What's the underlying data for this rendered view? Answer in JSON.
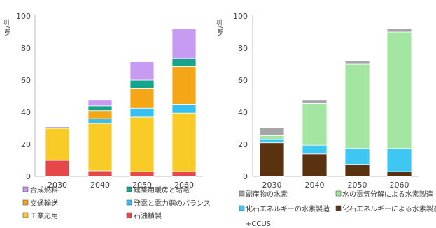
{
  "chart_data": [
    {
      "type": "bar",
      "stacked": true,
      "ylabel": "Mt/年",
      "ylim": [
        0,
        100
      ],
      "yticks": [
        0,
        20,
        40,
        60,
        80,
        100
      ],
      "grid": false,
      "legend_position": "bottom",
      "categories": [
        "2030",
        "2040",
        "2050",
        "2060"
      ],
      "series": [
        {
          "name": "石油精製",
          "color": "#e8474a",
          "values": [
            10,
            3.5,
            3,
            3
          ]
        },
        {
          "name": "工業応用",
          "color": "#f9cb27",
          "values": [
            20,
            29.5,
            34,
            36.5
          ]
        },
        {
          "name": "発電と電力網のバランス",
          "color": "#33c0f5",
          "values": [
            0,
            3,
            5.5,
            5.5
          ]
        },
        {
          "name": "交通輸送",
          "color": "#f4a616",
          "values": [
            0,
            5,
            12.5,
            23.5
          ]
        },
        {
          "name": "建築用暖房と給電",
          "color": "#14a58c",
          "values": [
            0,
            3,
            5,
            5
          ]
        },
        {
          "name": "合成燃料",
          "color": "#c79bf1",
          "values": [
            1,
            3.5,
            11.5,
            18.5
          ]
        }
      ],
      "legend_order": [
        "合成燃料",
        "建築用暖房と給電",
        "交通輸送",
        "発電と電力網のバランス",
        "工業応用",
        "石油精製"
      ]
    },
    {
      "type": "bar",
      "stacked": true,
      "ylabel": "Mt/年",
      "ylim": [
        0,
        100
      ],
      "yticks": [
        0,
        20,
        40,
        60,
        80,
        100
      ],
      "grid": false,
      "legend_position": "bottom",
      "categories": [
        "2030",
        "2040",
        "2050",
        "2060"
      ],
      "series": [
        {
          "name": "化石エネルギーによる水素製造",
          "color": "#5a3210",
          "values": [
            21,
            14,
            7.5,
            3
          ]
        },
        {
          "name": "化石エネルギーの水素製造+CCUS",
          "color": "#3fc7f4",
          "values": [
            2,
            5.5,
            10,
            14.5
          ]
        },
        {
          "name": "水の電気分解による水素製造",
          "color": "#a3e6a1",
          "values": [
            2.5,
            26,
            52.5,
            72.5
          ]
        },
        {
          "name": "副産物の水素",
          "color": "#a6a6a6",
          "values": [
            5,
            2,
            2,
            2
          ]
        }
      ],
      "legend_order": [
        "副産物の水素",
        "水の電気分解による水素製造",
        "化石エネルギーの水素製造+CCUS",
        "化石エネルギーによる水素製造"
      ]
    }
  ],
  "legend": {
    "left": [
      {
        "name": "合成燃料",
        "color": "#c79bf1"
      },
      {
        "name": "建築用暖房と給電",
        "color": "#14a58c"
      },
      {
        "name": "交通輸送",
        "color": "#f4a616"
      },
      {
        "name": "発電と電力網のバランス",
        "color": "#33c0f5"
      },
      {
        "name": "工業応用",
        "color": "#f9cb27"
      },
      {
        "name": "石油精製",
        "color": "#e8474a"
      }
    ],
    "right": [
      {
        "name": "副産物の水素",
        "color": "#a6a6a6"
      },
      {
        "name": "水の電気分解による水素製造",
        "color": "#a3e6a1"
      },
      {
        "name": "化石エネルギーの水素製造",
        "continuation": "+CCUS",
        "color": "#3fc7f4"
      },
      {
        "name": "化石エネルギーによる水素製造",
        "color": "#5a3210"
      }
    ]
  }
}
